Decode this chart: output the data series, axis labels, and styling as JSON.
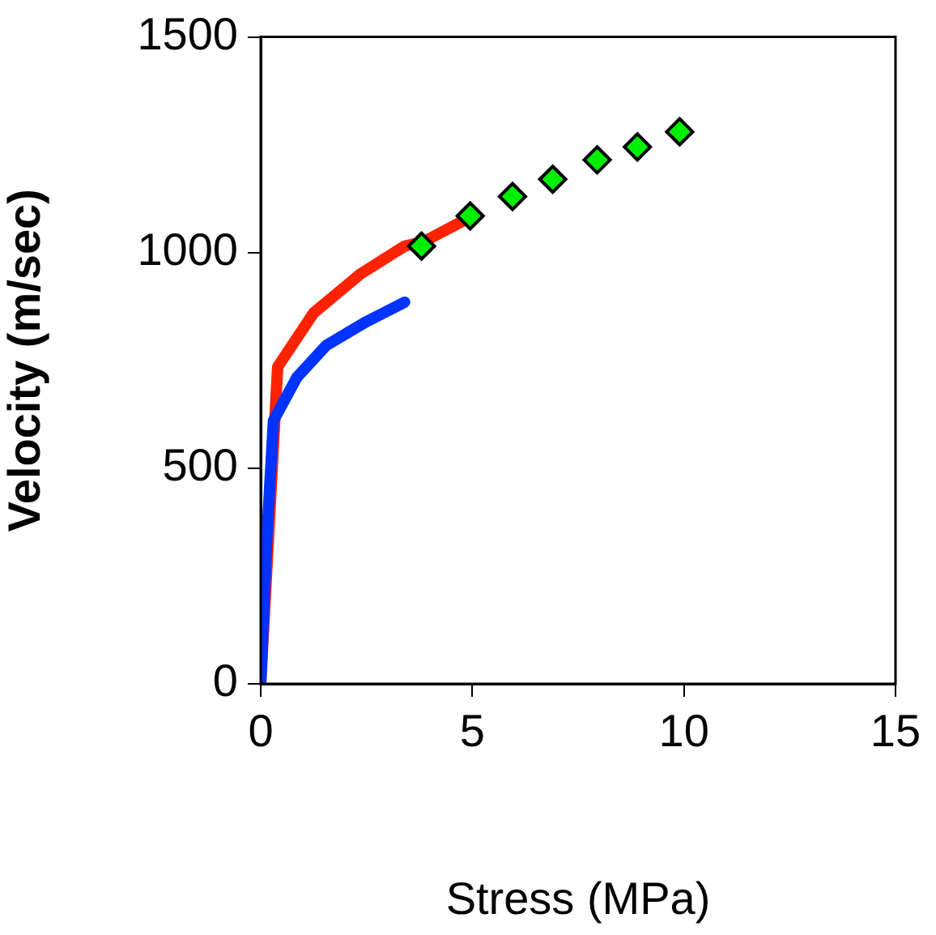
{
  "chart_data": {
    "type": "line",
    "xlabel": "Stress (MPa)",
    "ylabel": "Velocity (m/sec)",
    "xlim": [
      0,
      15
    ],
    "xticks": [
      0,
      5,
      10,
      15
    ],
    "ylim": [
      0,
      1500
    ],
    "yticks": [
      0,
      500,
      1000,
      1500
    ],
    "grid": false,
    "legend": false,
    "line_style": "solid",
    "series": [
      {
        "color": "#ff2200",
        "marker": "none",
        "x": [
          0,
          0.4,
          1.25,
          2.35,
          3.4,
          3.85,
          5
        ],
        "values": [
          0,
          735,
          860,
          950,
          1015,
          1025,
          1085
        ]
      },
      {
        "color": "#0033ff",
        "marker": "none",
        "x": [
          0,
          0.15,
          0.3,
          0.85,
          1.55,
          2.5,
          3.4
        ],
        "values": [
          0,
          350,
          610,
          710,
          785,
          840,
          885
        ]
      },
      {
        "type": "scatter",
        "color": "#00ee00",
        "marker": "diamond",
        "x": [
          3.8,
          4.95,
          5.95,
          6.9,
          7.95,
          8.9,
          9.9
        ],
        "values": [
          1015,
          1085,
          1130,
          1170,
          1215,
          1245,
          1280
        ]
      }
    ]
  }
}
